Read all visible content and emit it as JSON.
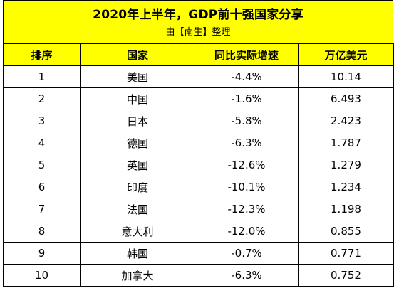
{
  "title": "2020年上半年，GDP前十强国家分享",
  "subtitle": "由【南生】整理",
  "headers": [
    "排序",
    "国家",
    "同比实际增速",
    "万亿美元"
  ],
  "rows": [
    [
      "1",
      "美国",
      "-4.4%",
      "10.14"
    ],
    [
      "2",
      "中国",
      "-1.6%",
      "6.493"
    ],
    [
      "3",
      "日本",
      "-5.8%",
      "2.423"
    ],
    [
      "4",
      "德国",
      "-6.3%",
      "1.787"
    ],
    [
      "5",
      "英国",
      "-12.6%",
      "1.279"
    ],
    [
      "6",
      "印度",
      "-10.1%",
      "1.234"
    ],
    [
      "7",
      "法国",
      "-12.3%",
      "1.198"
    ],
    [
      "8",
      "意大利",
      "-12.0%",
      "0.855"
    ],
    [
      "9",
      "韩国",
      "-0.7%",
      "0.771"
    ],
    [
      "10",
      "加拿大",
      "-6.3%",
      "0.752"
    ]
  ],
  "colors": {
    "header_background": "#ffff00",
    "border": "#000000"
  }
}
